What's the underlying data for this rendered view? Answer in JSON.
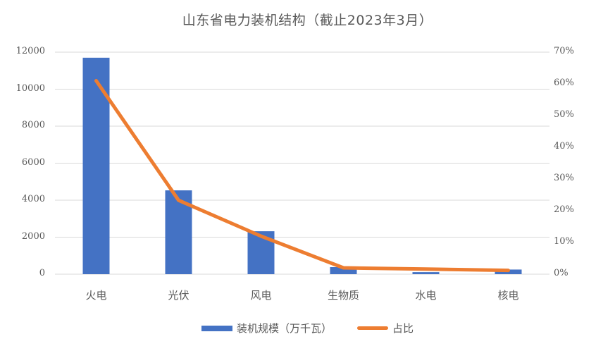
{
  "chart_data": {
    "type": "bar",
    "title": "山东省电力装机结构（截止2023年3月）",
    "categories": [
      "火电",
      "光伏",
      "风电",
      "生物质",
      "水电",
      "核电"
    ],
    "series": [
      {
        "name": "装机规模（万千瓦）",
        "type": "bar",
        "axis": "left",
        "color": "#4472C4",
        "values": [
          11700,
          4530,
          2320,
          380,
          110,
          250
        ]
      },
      {
        "name": "占比",
        "type": "line",
        "axis": "right",
        "color": "#ED7D31",
        "values": [
          0.61,
          0.233,
          0.12,
          0.02,
          0.016,
          0.012
        ]
      }
    ],
    "xlabel": "",
    "ylabel": "",
    "y_left": {
      "min": 0,
      "max": 12000,
      "ticks": [
        "0",
        "2000",
        "4000",
        "6000",
        "8000",
        "10000",
        "12000"
      ]
    },
    "y_right": {
      "min": 0,
      "max": 0.7,
      "ticks": [
        "0%",
        "10%",
        "20%",
        "30%",
        "40%",
        "50%",
        "60%",
        "70%"
      ]
    },
    "grid": true,
    "legend_position": "bottom"
  }
}
